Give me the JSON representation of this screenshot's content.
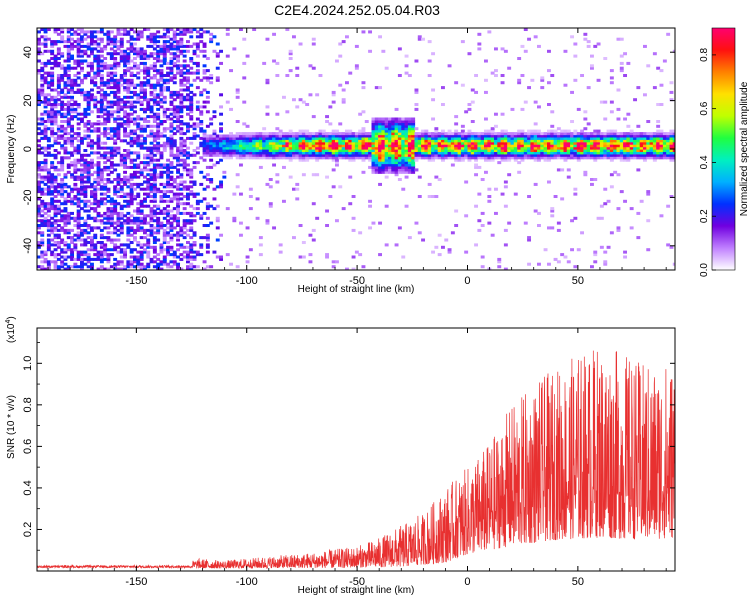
{
  "title": "C2E4.2024.252.05.04.R03",
  "chart_data": [
    {
      "type": "heatmap",
      "name": "spectrogram",
      "xlabel": "Height of straight line (km)",
      "ylabel": "Frequency (Hz)",
      "xlim": [
        -195,
        94
      ],
      "ylim": [
        -50,
        50
      ],
      "xticks": [
        -150,
        -100,
        -50,
        0,
        50
      ],
      "yticks": [
        -40,
        -20,
        0,
        20,
        40
      ],
      "ridge_frequency_hz": 1,
      "ridge_start_km": -120,
      "broadband_noise_below_km": -110,
      "disturbance_km": [
        -45,
        -25
      ],
      "colorbar": {
        "label": "Normalized spectral amplitude",
        "range": [
          0.0,
          0.9
        ],
        "ticks": [
          0.0,
          0.2,
          0.4,
          0.6,
          0.8
        ],
        "colormap": [
          "#ffffff",
          "#c080ff",
          "#7000e0",
          "#0030ff",
          "#00b0ff",
          "#00f0c0",
          "#20ff40",
          "#c0ff00",
          "#ffe000",
          "#ff8000",
          "#ff1010",
          "#ff0070"
        ]
      }
    },
    {
      "type": "line",
      "name": "snr",
      "xlabel": "Height of straight line (km)",
      "ylabel": "SNR (10 * v/v)",
      "y_multiplier": "(x10",
      "y_multiplier_exp": "4",
      "y_multiplier_close": ")",
      "xlim": [
        -195,
        94
      ],
      "ylim": [
        0,
        1.17
      ],
      "xticks": [
        -150,
        -100,
        -50,
        0,
        50
      ],
      "yticks": [
        0.2,
        0.4,
        0.6,
        0.8,
        1.0
      ],
      "color": "#e83030",
      "envelope": {
        "x": [
          -195,
          -130,
          -122,
          -110,
          -90,
          -70,
          -50,
          -40,
          -30,
          -20,
          -10,
          0,
          10,
          20,
          30,
          40,
          50,
          60,
          70,
          80,
          94
        ],
        "y": [
          0.03,
          0.03,
          0.06,
          0.05,
          0.07,
          0.09,
          0.12,
          0.16,
          0.22,
          0.28,
          0.4,
          0.5,
          0.62,
          0.8,
          0.9,
          0.98,
          1.05,
          1.1,
          1.06,
          1.0,
          1.02
        ]
      },
      "floor": {
        "x": [
          -195,
          -60,
          -30,
          -10,
          0,
          20,
          40,
          60,
          80,
          94
        ],
        "y": [
          0.01,
          0.015,
          0.02,
          0.04,
          0.08,
          0.12,
          0.15,
          0.16,
          0.15,
          0.16
        ]
      }
    }
  ]
}
